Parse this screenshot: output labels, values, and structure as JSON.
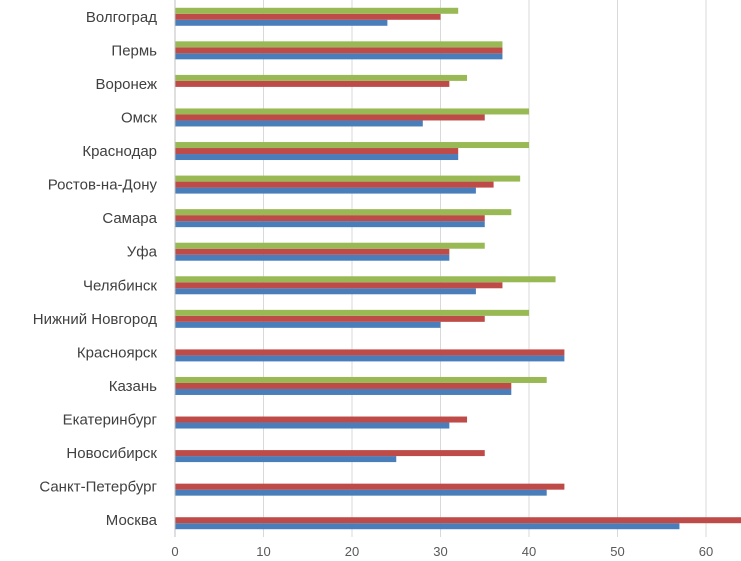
{
  "colors": {
    "series_blue": "#4a7ebb",
    "series_red": "#be4b48",
    "series_green": "#98b954"
  },
  "chart_data": {
    "type": "bar",
    "orientation": "horizontal",
    "title": "",
    "xlabel": "",
    "ylabel": "",
    "xlim": [
      0,
      64
    ],
    "x_ticks": [
      0,
      10,
      20,
      30,
      40,
      50,
      60
    ],
    "grid": true,
    "legend": "none",
    "categories": [
      "Москва",
      "Санкт-Петербург",
      "Новосибирск",
      "Екатеринбург",
      "Казань",
      "Красноярск",
      "Нижний Новгород",
      "Челябинск",
      "Уфа",
      "Самара",
      "Ростов-на-Дону",
      "Краснодар",
      "Омск",
      "Воронеж",
      "Пермь",
      "Волгоград"
    ],
    "series": [
      {
        "color": "#4a7ebb",
        "values": [
          57,
          42,
          25,
          31,
          38,
          44,
          30,
          34,
          31,
          35,
          34,
          32,
          28,
          0,
          37,
          24
        ]
      },
      {
        "color": "#be4b48",
        "values": [
          66,
          44,
          35,
          33,
          38,
          44,
          35,
          37,
          31,
          35,
          36,
          32,
          35,
          31,
          37,
          30
        ]
      },
      {
        "color": "#98b954",
        "values": [
          0,
          0,
          0,
          0,
          42,
          0,
          40,
          43,
          35,
          38,
          39,
          40,
          40,
          33,
          37,
          32
        ]
      }
    ]
  }
}
